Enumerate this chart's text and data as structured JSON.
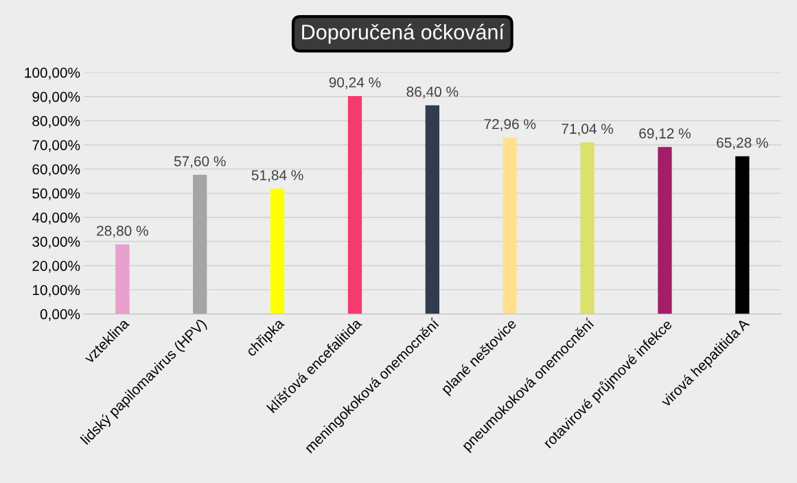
{
  "chart_data": {
    "type": "bar",
    "title": "Doporučená očkování",
    "categories": [
      "vzteklina",
      "lidský papilomavirus (HPV)",
      "chřipka",
      "klíšťová encefalitida",
      "meningokoková onemocnění",
      "plané neštovice",
      "pneumokoková onemocnění",
      "rotavirové průjmové infekce",
      "virová hepatitida A"
    ],
    "values": [
      28.8,
      57.6,
      51.84,
      90.24,
      86.4,
      72.96,
      71.04,
      69.12,
      65.28
    ],
    "colors": [
      "#e8a0cc",
      "#a5a5a5",
      "#ffff00",
      "#f43b6f",
      "#323c4f",
      "#ffe08f",
      "#dce06c",
      "#a31e66",
      "#000000"
    ],
    "value_labels": [
      "28,80 %",
      "57,60 %",
      "51,84 %",
      "90,24 %",
      "86,40 %",
      "72,96 %",
      "71,04 %",
      "69,12 %",
      "65,28 %"
    ],
    "ylim": [
      0,
      100
    ],
    "yticks": [
      {
        "value": 0,
        "label": "0,00%"
      },
      {
        "value": 10,
        "label": "10,00%"
      },
      {
        "value": 20,
        "label": "20,00%"
      },
      {
        "value": 30,
        "label": "30,00%"
      },
      {
        "value": 40,
        "label": "40,00%"
      },
      {
        "value": 50,
        "label": "50,00%"
      },
      {
        "value": 60,
        "label": "60,00%"
      },
      {
        "value": 70,
        "label": "70,00%"
      },
      {
        "value": 80,
        "label": "80,00%"
      },
      {
        "value": 90,
        "label": "90,00%"
      },
      {
        "value": 100,
        "label": "100,00%"
      }
    ],
    "grid": "y",
    "legend": false
  }
}
